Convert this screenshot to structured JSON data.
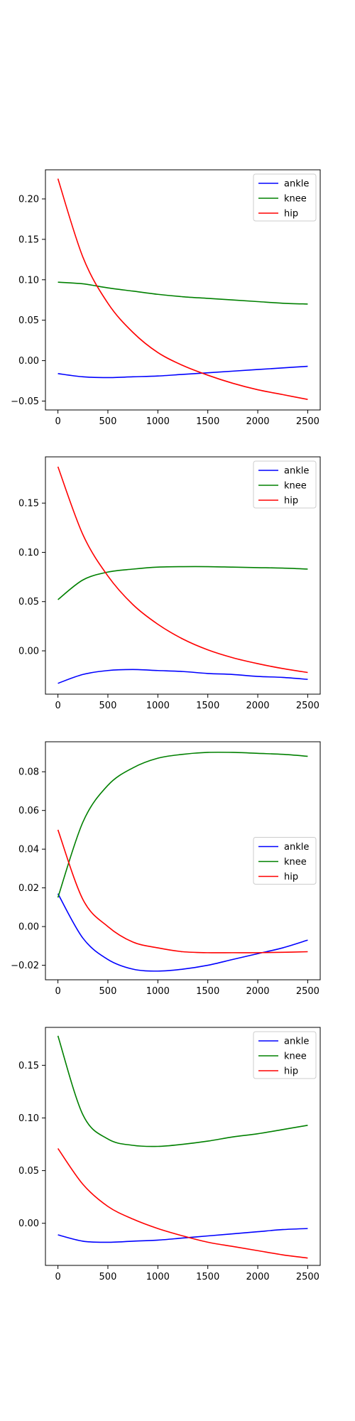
{
  "colors": {
    "ankle": "#0000ff",
    "knee": "#008000",
    "hip": "#ff0000"
  },
  "chart_data": [
    {
      "type": "line",
      "title": "",
      "xlabel": "",
      "ylabel": "",
      "xlim": [
        -125,
        2625
      ],
      "ylim": [
        -0.061,
        0.236
      ],
      "xticks": [
        0,
        500,
        1000,
        1500,
        2000,
        2500
      ],
      "yticks": [
        -0.05,
        0.0,
        0.05,
        0.1,
        0.15,
        0.2
      ],
      "ytick_labels": [
        "−0.05",
        "0.00",
        "0.05",
        "0.10",
        "0.15",
        "0.20"
      ],
      "legend": "top-right",
      "x": [
        0,
        250,
        500,
        750,
        1000,
        1250,
        1500,
        1750,
        2000,
        2250,
        2500
      ],
      "series": [
        {
          "name": "ankle",
          "color": "#0000ff",
          "values": [
            -0.016,
            -0.02,
            -0.021,
            -0.02,
            -0.019,
            -0.017,
            -0.015,
            -0.013,
            -0.011,
            -0.009,
            -0.007
          ]
        },
        {
          "name": "knee",
          "color": "#008000",
          "values": [
            0.097,
            0.095,
            0.09,
            0.086,
            0.082,
            0.079,
            0.077,
            0.075,
            0.073,
            0.071,
            0.07
          ]
        },
        {
          "name": "hip",
          "color": "#ff0000",
          "values": [
            0.225,
            0.128,
            0.071,
            0.035,
            0.01,
            -0.006,
            -0.018,
            -0.028,
            -0.036,
            -0.042,
            -0.048
          ]
        }
      ]
    },
    {
      "type": "line",
      "title": "",
      "xlabel": "",
      "ylabel": "",
      "xlim": [
        -125,
        2625
      ],
      "ylim": [
        -0.044,
        0.197
      ],
      "xticks": [
        0,
        500,
        1000,
        1500,
        2000,
        2500
      ],
      "yticks": [
        0.0,
        0.05,
        0.1,
        0.15
      ],
      "ytick_labels": [
        "0.00",
        "0.05",
        "0.10",
        "0.15"
      ],
      "legend": "top-right",
      "x": [
        0,
        250,
        500,
        750,
        1000,
        1250,
        1500,
        1750,
        2000,
        2250,
        2500
      ],
      "series": [
        {
          "name": "ankle",
          "color": "#0000ff",
          "values": [
            -0.033,
            -0.024,
            -0.02,
            -0.019,
            -0.02,
            -0.021,
            -0.023,
            -0.024,
            -0.026,
            -0.027,
            -0.029
          ]
        },
        {
          "name": "knee",
          "color": "#008000",
          "values": [
            0.052,
            0.072,
            0.08,
            0.083,
            0.085,
            0.0855,
            0.0855,
            0.085,
            0.0845,
            0.084,
            0.083
          ]
        },
        {
          "name": "hip",
          "color": "#ff0000",
          "values": [
            0.187,
            0.118,
            0.076,
            0.047,
            0.027,
            0.012,
            0.001,
            -0.007,
            -0.013,
            -0.018,
            -0.022
          ]
        }
      ]
    },
    {
      "type": "line",
      "title": "",
      "xlabel": "",
      "ylabel": "",
      "xlim": [
        -125,
        2625
      ],
      "ylim": [
        -0.0275,
        0.0955
      ],
      "xticks": [
        0,
        500,
        1000,
        1500,
        2000,
        2500
      ],
      "yticks": [
        -0.02,
        0.0,
        0.02,
        0.04,
        0.06,
        0.08
      ],
      "ytick_labels": [
        "−0.02",
        "0.00",
        "0.02",
        "0.04",
        "0.06",
        "0.08"
      ],
      "legend": "center-right",
      "x": [
        0,
        250,
        500,
        750,
        1000,
        1250,
        1500,
        1750,
        2000,
        2250,
        2500
      ],
      "series": [
        {
          "name": "ankle",
          "color": "#0000ff",
          "values": [
            0.017,
            -0.006,
            -0.017,
            -0.022,
            -0.023,
            -0.022,
            -0.02,
            -0.017,
            -0.014,
            -0.011,
            -0.007
          ]
        },
        {
          "name": "knee",
          "color": "#008000",
          "values": [
            0.015,
            0.054,
            0.073,
            0.082,
            0.087,
            0.089,
            0.09,
            0.09,
            0.0895,
            0.089,
            0.088
          ]
        },
        {
          "name": "hip",
          "color": "#ff0000",
          "values": [
            0.05,
            0.014,
            0.0,
            -0.008,
            -0.011,
            -0.013,
            -0.0135,
            -0.0135,
            -0.0135,
            -0.0133,
            -0.013
          ]
        }
      ]
    },
    {
      "type": "line",
      "title": "",
      "xlabel": "",
      "ylabel": "",
      "xlim": [
        -125,
        2625
      ],
      "ylim": [
        -0.04,
        0.186
      ],
      "xticks": [
        0,
        500,
        1000,
        1500,
        2000,
        2500
      ],
      "yticks": [
        0.0,
        0.05,
        0.1,
        0.15
      ],
      "ytick_labels": [
        "0.00",
        "0.05",
        "0.10",
        "0.15"
      ],
      "legend": "top-right",
      "x": [
        0,
        250,
        500,
        750,
        1000,
        1250,
        1500,
        1750,
        2000,
        2250,
        2500
      ],
      "series": [
        {
          "name": "ankle",
          "color": "#0000ff",
          "values": [
            -0.011,
            -0.017,
            -0.018,
            -0.017,
            -0.016,
            -0.014,
            -0.012,
            -0.01,
            -0.008,
            -0.006,
            -0.005
          ]
        },
        {
          "name": "knee",
          "color": "#008000",
          "values": [
            0.178,
            0.103,
            0.08,
            0.074,
            0.073,
            0.075,
            0.078,
            0.082,
            0.085,
            0.089,
            0.093
          ]
        },
        {
          "name": "hip",
          "color": "#ff0000",
          "values": [
            0.071,
            0.037,
            0.016,
            0.004,
            -0.005,
            -0.012,
            -0.018,
            -0.022,
            -0.026,
            -0.03,
            -0.033
          ]
        }
      ]
    }
  ]
}
